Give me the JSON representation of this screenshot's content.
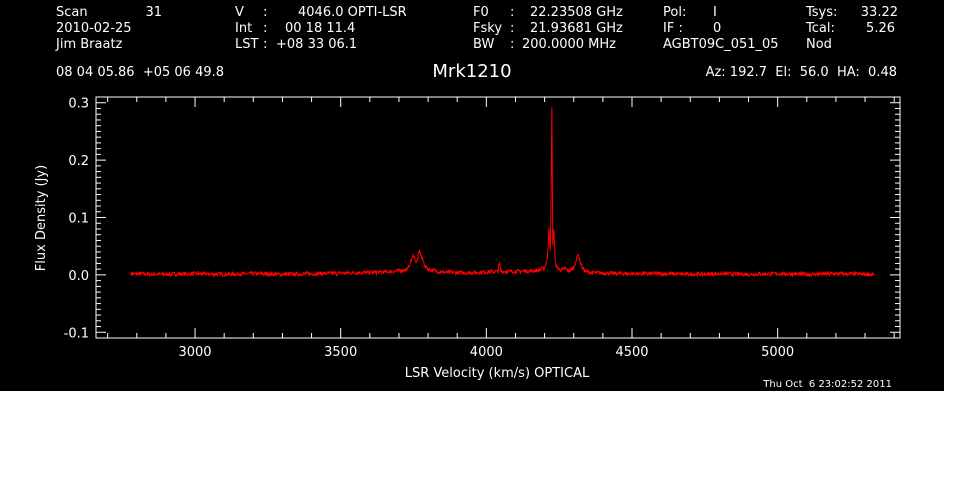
{
  "header": {
    "scan_label": "Scan",
    "scan_value": "31",
    "date": "2010-02-25",
    "observer": "Jim Braatz",
    "v_label": "V",
    "v_sep": ":",
    "v_value": "4046.0 OPTI-LSR",
    "int_label": "Int",
    "int_sep": ":",
    "int_value": "00 18 11.4",
    "lst_label": "LST",
    "lst_sep": ":",
    "lst_value": "+08 33 06.1",
    "f0_label": "F0",
    "f0_sep": ":",
    "f0_value": "22.23508 GHz",
    "fsky_label": "Fsky",
    "fsky_sep": ":",
    "fsky_value": "21.93681 GHz",
    "bw_label": "BW",
    "bw_sep": ":",
    "bw_value": "200.0000 MHz",
    "pol_label": "Pol:",
    "pol_value": "I",
    "if_label": "IF :",
    "if_value": "0",
    "project": "AGBT09C_051_05",
    "tsys_label": "Tsys:",
    "tsys_value": "33.22",
    "tcal_label": "Tcal:",
    "tcal_value": "5.26",
    "mode": "Nod",
    "ra_dec": "08 04 05.86  +05 06 49.8",
    "source": "Mrk1210",
    "az_el_ha": "Az: 192.7  El:  56.0  HA:  0.48"
  },
  "timestamp": "Thu Oct  6 23:02:52 2011",
  "colors": {
    "background": "#000000",
    "axes": "#ffffff",
    "series": "#ff0000"
  },
  "chart_data": {
    "type": "line",
    "xlabel": "LSR Velocity (km/s) OPTICAL",
    "ylabel": "Flux Density (Jy)",
    "xlim": [
      2660,
      5420
    ],
    "ylim": [
      -0.11,
      0.31
    ],
    "x_ticks": [
      3000,
      3500,
      4000,
      4500,
      5000
    ],
    "x_tick_labels": [
      "3000",
      "3500",
      "4000",
      "4500",
      "5000"
    ],
    "y_ticks": [
      -0.1,
      0.0,
      0.1,
      0.2,
      0.3
    ],
    "y_tick_labels": [
      "-0.1",
      "0.0",
      "0.1",
      "0.2",
      "0.3"
    ],
    "grid": false,
    "series": [
      {
        "x": [
          2780,
          2900,
          3000,
          3100,
          3200,
          3300,
          3400,
          3500,
          3550,
          3600,
          3650,
          3700,
          3730,
          3750,
          3760,
          3770,
          3780,
          3790,
          3800,
          3830,
          3870,
          3900,
          3950,
          4000,
          4040,
          4045,
          4050,
          4100,
          4150,
          4180,
          4200,
          4210,
          4215,
          4220,
          4225,
          4228,
          4232,
          4236,
          4240,
          4250,
          4260,
          4270,
          4280,
          4290,
          4300,
          4310,
          4315,
          4320,
          4330,
          4340,
          4360,
          4400,
          4500,
          4600,
          4700,
          4800,
          4900,
          5000,
          5100,
          5200,
          5330
        ],
        "y": [
          0.002,
          0.001,
          0.002,
          0.001,
          0.002,
          0.001,
          0.002,
          0.003,
          0.004,
          0.004,
          0.005,
          0.007,
          0.01,
          0.035,
          0.02,
          0.042,
          0.028,
          0.015,
          0.01,
          0.006,
          0.004,
          0.004,
          0.004,
          0.005,
          0.006,
          0.02,
          0.006,
          0.006,
          0.007,
          0.008,
          0.012,
          0.03,
          0.085,
          0.04,
          0.29,
          0.05,
          0.08,
          0.025,
          0.015,
          0.01,
          0.008,
          0.012,
          0.007,
          0.009,
          0.012,
          0.028,
          0.038,
          0.025,
          0.012,
          0.006,
          0.004,
          0.003,
          0.002,
          0.002,
          0.001,
          0.002,
          0.001,
          0.002,
          0.001,
          0.002,
          0.001
        ]
      }
    ]
  }
}
